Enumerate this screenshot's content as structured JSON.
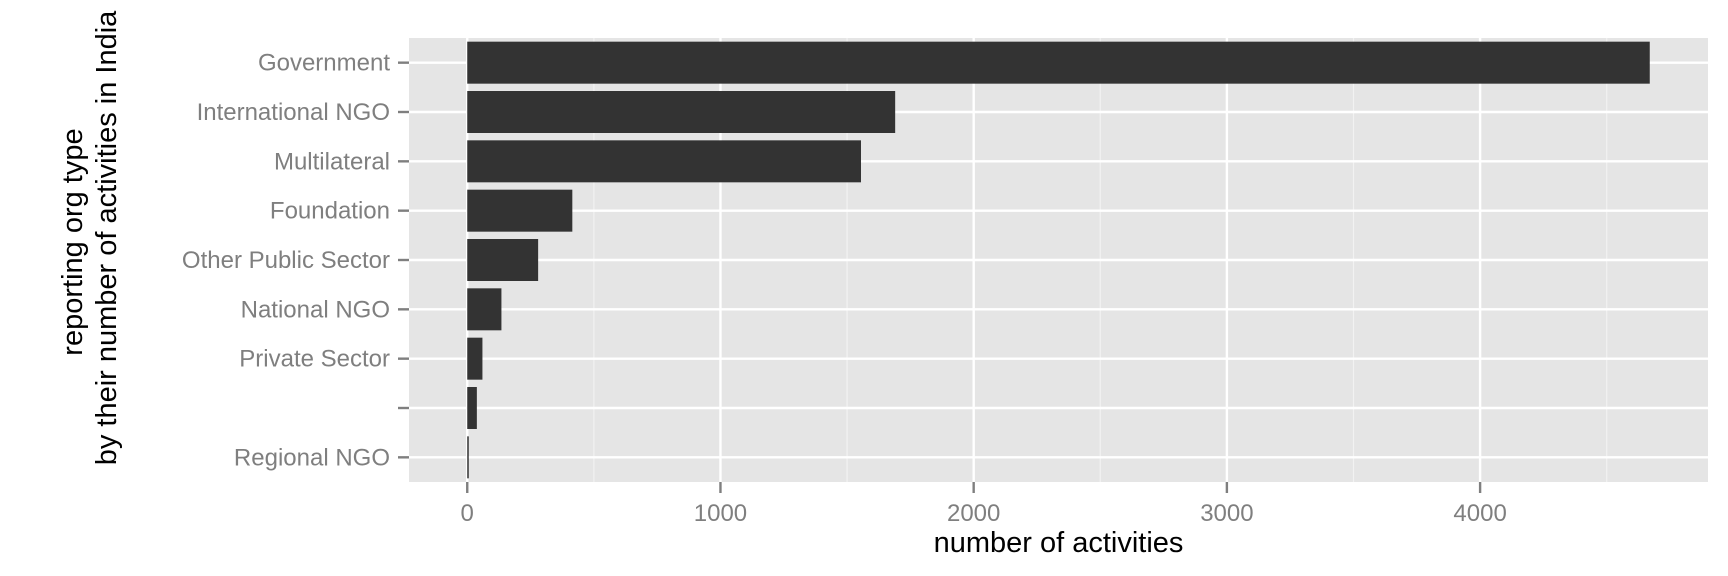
{
  "chart_data": {
    "type": "bar",
    "orientation": "horizontal",
    "categories": [
      "Government",
      "International NGO",
      "Multilateral",
      "Foundation",
      "Other Public Sector",
      "National NGO",
      "Private Sector",
      "",
      "Regional NGO"
    ],
    "values": [
      4670,
      1690,
      1555,
      415,
      280,
      135,
      60,
      38,
      5
    ],
    "xlabel": "number of activities",
    "ylabel_lines": [
      "reporting org type",
      "by their number of activities in India"
    ],
    "xlim": [
      -230,
      4900
    ],
    "xticks": [
      0,
      1000,
      2000,
      3000,
      4000
    ],
    "xtick_labels": [
      "0",
      "1000",
      "2000",
      "3000",
      "4000"
    ],
    "grid": true,
    "colors": {
      "bar": "#333333",
      "panel": "#e5e5e5",
      "gridline": "#ffffff",
      "tick_text": "#7f7f7f",
      "title_text": "#000000"
    }
  }
}
